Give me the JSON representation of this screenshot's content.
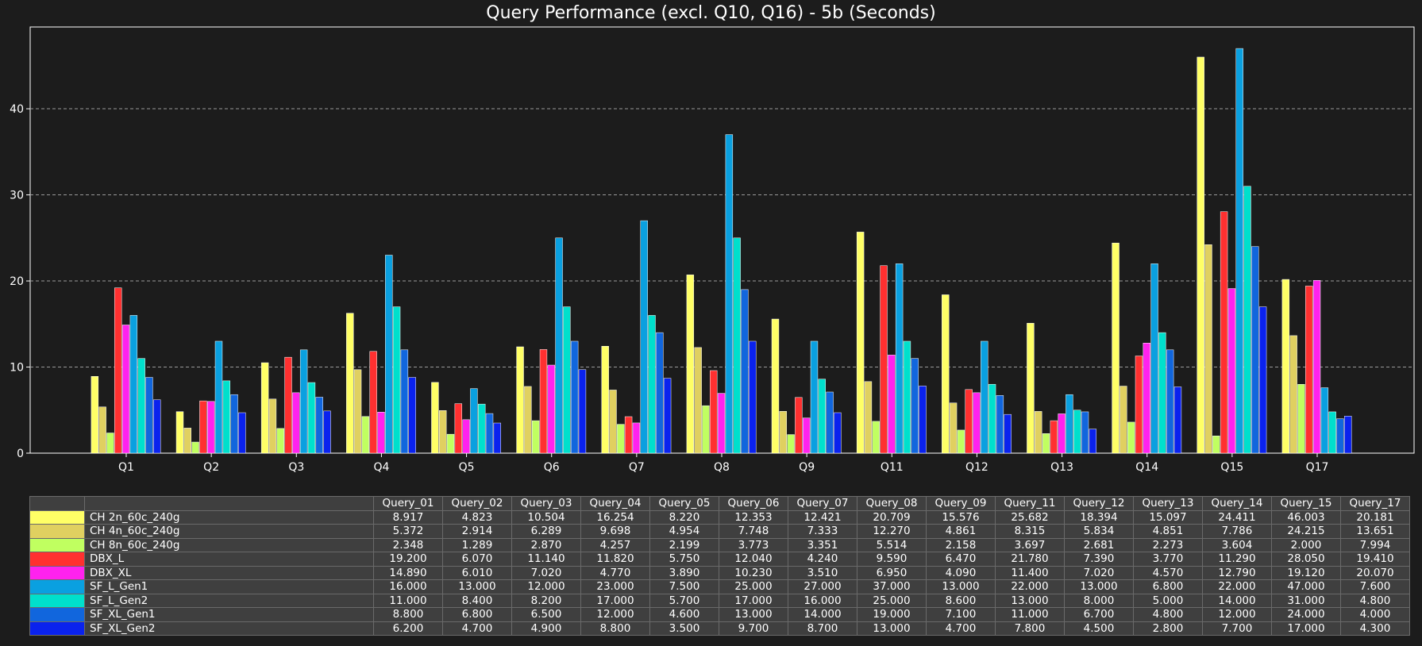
{
  "chart_data": {
    "type": "bar",
    "title": "Query Performance (excl. Q10, Q16) - 5b (Seconds)",
    "xlabel": "",
    "ylabel": "",
    "categories": [
      "Q1",
      "Q2",
      "Q3",
      "Q4",
      "Q5",
      "Q6",
      "Q7",
      "Q8",
      "Q9",
      "Q11",
      "Q12",
      "Q13",
      "Q14",
      "Q15",
      "Q17"
    ],
    "ylim": [
      0,
      49.5
    ],
    "yticks": [
      0,
      10,
      20,
      30,
      40
    ],
    "grid": true,
    "series": [
      {
        "name": "CH 2n_60c_240g",
        "color": "#ffff66",
        "values": [
          8.917,
          4.823,
          10.504,
          16.254,
          8.22,
          12.353,
          12.421,
          20.709,
          15.576,
          25.682,
          18.394,
          15.097,
          24.411,
          46.003,
          20.181
        ]
      },
      {
        "name": "CH 4n_60c_240g",
        "color": "#e0d060",
        "values": [
          5.372,
          2.914,
          6.289,
          9.698,
          4.954,
          7.748,
          7.333,
          12.27,
          4.861,
          8.315,
          5.834,
          4.851,
          7.786,
          24.215,
          13.651
        ]
      },
      {
        "name": "CH 8n_60c_240g",
        "color": "#c0ff60",
        "values": [
          2.348,
          1.289,
          2.87,
          4.257,
          2.199,
          3.773,
          3.351,
          5.514,
          2.158,
          3.697,
          2.681,
          2.273,
          3.604,
          2.0,
          7.994
        ]
      },
      {
        "name": "DBX_L",
        "color": "#ff3030",
        "values": [
          19.2,
          6.07,
          11.14,
          11.82,
          5.75,
          12.04,
          4.24,
          9.59,
          6.47,
          21.78,
          7.39,
          3.77,
          11.29,
          28.05,
          19.41
        ]
      },
      {
        "name": "DBX_XL",
        "color": "#ff22ee",
        "values": [
          14.89,
          6.01,
          7.02,
          4.77,
          3.89,
          10.23,
          3.51,
          6.95,
          4.09,
          11.4,
          7.02,
          4.57,
          12.79,
          19.12,
          20.07
        ]
      },
      {
        "name": "SF_L_Gen1",
        "color": "#0aa0e0",
        "values": [
          16.0,
          13.0,
          12.0,
          23.0,
          7.5,
          25.0,
          27.0,
          37.0,
          13.0,
          22.0,
          13.0,
          6.8,
          22.0,
          47.0,
          7.6
        ]
      },
      {
        "name": "SF_L_Gen2",
        "color": "#00e0cc",
        "values": [
          11.0,
          8.4,
          8.2,
          17.0,
          5.7,
          17.0,
          16.0,
          25.0,
          8.6,
          13.0,
          8.0,
          5.0,
          14.0,
          31.0,
          4.8
        ]
      },
      {
        "name": "SF_XL_Gen1",
        "color": "#1166dd",
        "values": [
          8.8,
          6.8,
          6.5,
          12.0,
          4.6,
          13.0,
          14.0,
          19.0,
          7.1,
          11.0,
          6.7,
          4.8,
          12.0,
          24.0,
          4.0
        ]
      },
      {
        "name": "SF_XL_Gen2",
        "color": "#0a22ee",
        "values": [
          6.2,
          4.7,
          4.9,
          8.8,
          3.5,
          9.7,
          8.7,
          13.0,
          4.7,
          7.8,
          4.5,
          2.8,
          7.7,
          17.0,
          4.3
        ]
      }
    ],
    "table": {
      "columns": [
        "Query_01",
        "Query_02",
        "Query_03",
        "Query_04",
        "Query_05",
        "Query_06",
        "Query_07",
        "Query_08",
        "Query_09",
        "Query_11",
        "Query_12",
        "Query_13",
        "Query_14",
        "Query_15",
        "Query_17"
      ],
      "rows": [
        {
          "name": "CH 2n_60c_240g",
          "values": [
            "8.917",
            "4.823",
            "10.504",
            "16.254",
            "8.220",
            "12.353",
            "12.421",
            "20.709",
            "15.576",
            "25.682",
            "18.394",
            "15.097",
            "24.411",
            "46.003",
            "20.181"
          ]
        },
        {
          "name": "CH 4n_60c_240g",
          "values": [
            "5.372",
            "2.914",
            "6.289",
            "9.698",
            "4.954",
            "7.748",
            "7.333",
            "12.270",
            "4.861",
            "8.315",
            "5.834",
            "4.851",
            "7.786",
            "24.215",
            "13.651"
          ]
        },
        {
          "name": "CH 8n_60c_240g",
          "values": [
            "2.348",
            "1.289",
            "2.870",
            "4.257",
            "2.199",
            "3.773",
            "3.351",
            "5.514",
            "2.158",
            "3.697",
            "2.681",
            "2.273",
            "3.604",
            "2.000",
            "7.994"
          ]
        },
        {
          "name": "DBX_L",
          "values": [
            "19.200",
            "6.070",
            "11.140",
            "11.820",
            "5.750",
            "12.040",
            "4.240",
            "9.590",
            "6.470",
            "21.780",
            "7.390",
            "3.770",
            "11.290",
            "28.050",
            "19.410"
          ]
        },
        {
          "name": "DBX_XL",
          "values": [
            "14.890",
            "6.010",
            "7.020",
            "4.770",
            "3.890",
            "10.230",
            "3.510",
            "6.950",
            "4.090",
            "11.400",
            "7.020",
            "4.570",
            "12.790",
            "19.120",
            "20.070"
          ]
        },
        {
          "name": "SF_L_Gen1",
          "values": [
            "16.000",
            "13.000",
            "12.000",
            "23.000",
            "7.500",
            "25.000",
            "27.000",
            "37.000",
            "13.000",
            "22.000",
            "13.000",
            "6.800",
            "22.000",
            "47.000",
            "7.600"
          ]
        },
        {
          "name": "SF_L_Gen2",
          "values": [
            "11.000",
            "8.400",
            "8.200",
            "17.000",
            "5.700",
            "17.000",
            "16.000",
            "25.000",
            "8.600",
            "13.000",
            "8.000",
            "5.000",
            "14.000",
            "31.000",
            "4.800"
          ]
        },
        {
          "name": "SF_XL_Gen1",
          "values": [
            "8.800",
            "6.800",
            "6.500",
            "12.000",
            "4.600",
            "13.000",
            "14.000",
            "19.000",
            "7.100",
            "11.000",
            "6.700",
            "4.800",
            "12.000",
            "24.000",
            "4.000"
          ]
        },
        {
          "name": "SF_XL_Gen2",
          "values": [
            "6.200",
            "4.700",
            "4.900",
            "8.800",
            "3.500",
            "9.700",
            "8.700",
            "13.000",
            "4.700",
            "7.800",
            "4.500",
            "2.800",
            "7.700",
            "17.000",
            "4.300"
          ]
        }
      ]
    }
  }
}
